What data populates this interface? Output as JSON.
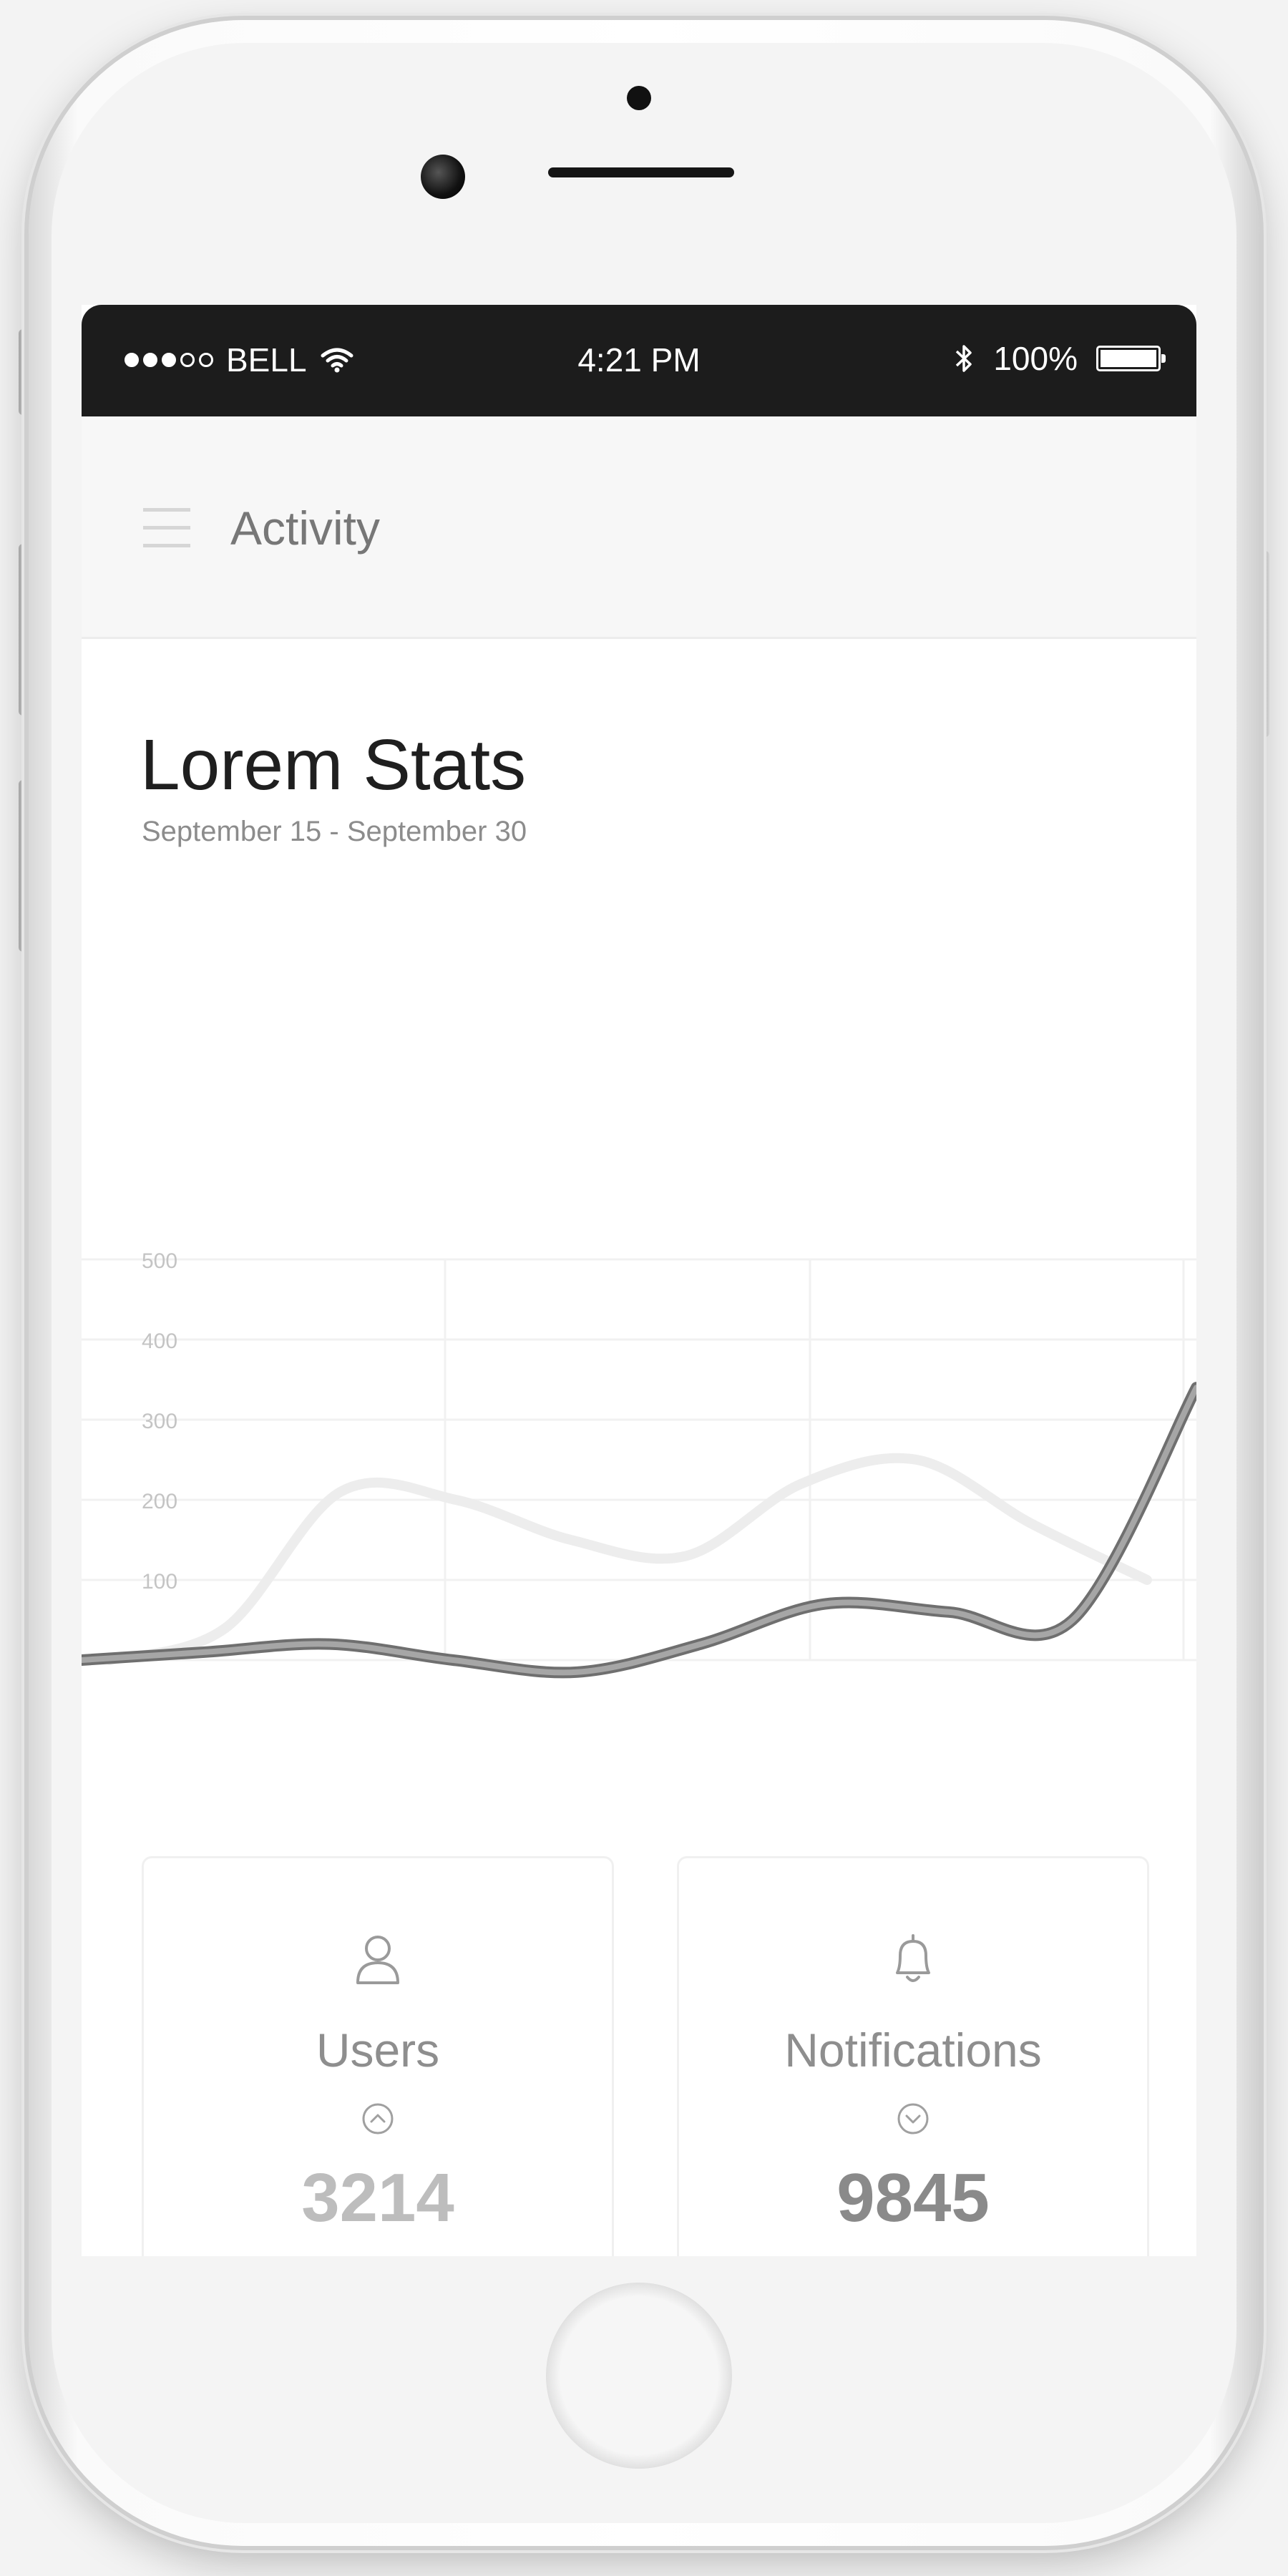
{
  "status_bar": {
    "carrier": "BELL",
    "time": "4:21 PM",
    "battery": "100%"
  },
  "app_bar": {
    "title": "Activity"
  },
  "stats": {
    "title": "Lorem Stats",
    "date_range": "September 15 - September 30"
  },
  "chart_data": {
    "type": "line",
    "title": "",
    "xlabel": "",
    "ylabel": "",
    "ylim": [
      0,
      500
    ],
    "y_ticks": [
      "500",
      "400",
      "300",
      "200",
      "100"
    ],
    "x": [
      0,
      1,
      2,
      3,
      4,
      5,
      6,
      7,
      8,
      9
    ],
    "grid": true,
    "legend": "none",
    "series": [
      {
        "color": "#ededed",
        "values": [
          0,
          40,
          210,
          200,
          150,
          130,
          220,
          250,
          170,
          100
        ]
      },
      {
        "color": "#8f8f8f",
        "values": [
          0,
          10,
          20,
          0,
          -15,
          20,
          70,
          60,
          50,
          340
        ]
      }
    ]
  },
  "cards": [
    {
      "label": "Users",
      "value": "3214",
      "icon": "user-icon",
      "trend": "chevron-up-icon"
    },
    {
      "label": "Notifications",
      "value": "9845",
      "icon": "bell-icon",
      "trend": "chevron-down-icon"
    }
  ]
}
